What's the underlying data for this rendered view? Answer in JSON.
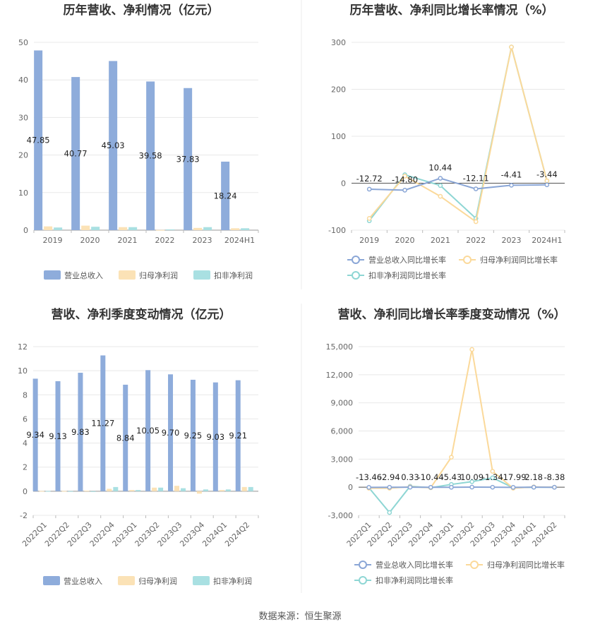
{
  "footer": {
    "source": "数据来源：恒生聚源"
  },
  "legend_bar": [
    "营业总收入",
    "归母净利润",
    "扣非净利润"
  ],
  "legend_line": [
    "营业总收入同比增长率",
    "归母净利润同比增长率",
    "扣非净利润同比增长率"
  ],
  "colors": {
    "revenue": "#8eacdb",
    "net_profit": "#fbe2b6",
    "deducted_profit": "#a9e0e2",
    "line_revenue": "#8aa6d6",
    "line_net": "#fbd99a",
    "line_deducted": "#8ed6d4"
  },
  "chart_data": [
    {
      "type": "bar",
      "title": "历年营收、净利情况（亿元）",
      "categories": [
        "2019",
        "2020",
        "2021",
        "2022",
        "2023",
        "2024H1"
      ],
      "ylim": [
        0,
        50
      ],
      "yticks": [
        0,
        10,
        20,
        30,
        40,
        50
      ],
      "series": [
        {
          "name": "营业总收入",
          "values": [
            47.85,
            40.77,
            45.03,
            39.58,
            37.83,
            18.24
          ],
          "labels": [
            "47.85",
            "40.77",
            "45.03",
            "39.58",
            "37.83",
            "18.24"
          ]
        },
        {
          "name": "归母净利润",
          "values": [
            1.0,
            1.2,
            0.8,
            0.05,
            0.6,
            0.5
          ]
        },
        {
          "name": "扣非净利润",
          "values": [
            0.7,
            0.9,
            0.8,
            0.2,
            0.8,
            0.5
          ]
        }
      ],
      "legend": "bottom"
    },
    {
      "type": "line",
      "title": "历年营收、净利同比增长率情况（%）",
      "categories": [
        "2019",
        "2020",
        "2021",
        "2022",
        "2023",
        "2024H1"
      ],
      "ylim": [
        -100,
        300
      ],
      "yticks": [
        -100,
        0,
        100,
        200,
        300
      ],
      "series": [
        {
          "name": "营业总收入同比增长率",
          "values": [
            -12.72,
            -14.8,
            10.44,
            -12.11,
            -4.41,
            -3.44
          ],
          "labels": [
            "-12.72",
            "-14.80",
            "10.44",
            "-12.11",
            "-4.41",
            "-3.44"
          ]
        },
        {
          "name": "归母净利润同比增长率",
          "values": [
            -75,
            15,
            -28,
            -82,
            290,
            5
          ]
        },
        {
          "name": "扣非净利润同比增长率",
          "values": [
            -80,
            18,
            -5,
            -75,
            290,
            5
          ]
        }
      ],
      "legend": "bottom"
    },
    {
      "type": "bar",
      "title": "营收、净利季度变动情况（亿元）",
      "categories": [
        "2022Q1",
        "2022Q2",
        "2022Q3",
        "2022Q4",
        "2023Q1",
        "2023Q2",
        "2023Q3",
        "2023Q4",
        "2024Q1",
        "2024Q2"
      ],
      "ylim": [
        -2,
        12
      ],
      "yticks": [
        -2,
        0,
        2,
        4,
        6,
        8,
        10,
        12
      ],
      "series": [
        {
          "name": "营业总收入",
          "values": [
            9.34,
            9.13,
            9.83,
            11.27,
            8.84,
            10.05,
            9.7,
            9.25,
            9.03,
            9.21
          ],
          "labels": [
            "9.34",
            "9.13",
            "9.83",
            "11.27",
            "8.84",
            "10.05",
            "9.70",
            "9.25",
            "9.03",
            "9.21"
          ]
        },
        {
          "name": "归母净利润",
          "values": [
            0.02,
            0.02,
            0.05,
            0.2,
            0.1,
            0.3,
            0.45,
            -0.2,
            0.1,
            0.35
          ]
        },
        {
          "name": "扣非净利润",
          "values": [
            0.02,
            0.01,
            -0.05,
            0.35,
            0.1,
            0.3,
            0.25,
            0.15,
            0.15,
            0.35
          ]
        }
      ],
      "legend": "bottom"
    },
    {
      "type": "line",
      "title": "营收、净利同比增长率季度变动情况（%）",
      "categories": [
        "2022Q1",
        "2022Q2",
        "2022Q3",
        "2022Q4",
        "2023Q1",
        "2023Q2",
        "2023Q3",
        "2023Q4",
        "2024Q1",
        "2024Q2"
      ],
      "ylim": [
        -3000,
        15000
      ],
      "yticks": [
        -3000,
        0,
        3000,
        6000,
        9000,
        12000,
        15000
      ],
      "ytick_labels": [
        "-3,000",
        "0",
        "3,000",
        "6,000",
        "9,000",
        "12,000",
        "15,000"
      ],
      "series": [
        {
          "name": "营业总收入同比增长率",
          "values": [
            -13.46,
            -2.94,
            0.33,
            -10.44,
            -5.43,
            10.09,
            -1.34,
            -17.99,
            2.18,
            -8.38
          ],
          "labels": [
            "-13.46",
            "-2.94",
            "0.33",
            "-10.44",
            "-5.43",
            "10.09",
            "-1.34",
            "-17.99",
            "2.18",
            "-8.38"
          ]
        },
        {
          "name": "归母净利润同比增长率",
          "values": [
            -100,
            -100,
            50,
            -50,
            3200,
            14700,
            1700,
            -100,
            30,
            0
          ]
        },
        {
          "name": "扣非净利润同比增长率",
          "values": [
            -50,
            -2700,
            100,
            -50,
            300,
            600,
            1000,
            -50,
            0,
            0
          ]
        }
      ],
      "legend": "bottom"
    }
  ]
}
